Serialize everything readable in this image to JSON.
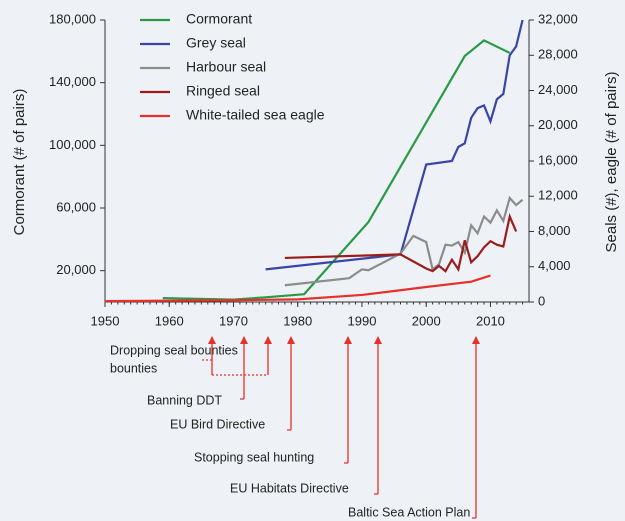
{
  "chart_data": {
    "type": "line",
    "y_label": "Cormorant (# of pairs)",
    "y2_label": "Seals (#), eagle (# of pairs)",
    "xlim": [
      1950,
      2016
    ],
    "xticks": [
      1950,
      1960,
      1970,
      1980,
      1990,
      2000,
      2010
    ],
    "ylim": [
      0,
      180000
    ],
    "yticks": [
      {
        "value": 20000,
        "label": "20,000"
      },
      {
        "value": 60000,
        "label": "60,000"
      },
      {
        "value": 100000,
        "label": "100,000"
      },
      {
        "value": 140000,
        "label": "140,000"
      },
      {
        "value": 180000,
        "label": "180,000"
      }
    ],
    "y2lim": [
      0,
      32000
    ],
    "y2ticks": [
      0,
      {
        "value": 4000,
        "label": "4,000"
      },
      {
        "value": 8000,
        "label": "8,000"
      },
      {
        "value": 12000,
        "label": "12,000"
      },
      {
        "value": 16000,
        "label": "16,000"
      },
      {
        "value": 20000,
        "label": "20,000"
      },
      {
        "value": 24000,
        "label": "24,000"
      },
      {
        "value": 28000,
        "label": "28,000"
      },
      {
        "value": 32000,
        "label": "32,000"
      }
    ],
    "legend": "upper left",
    "series": [
      {
        "name": "Cormorant",
        "color": "#2a9a48",
        "axis": "y",
        "x": [
          1959,
          1970,
          1975,
          1981,
          1991,
          2006,
          2009,
          2013
        ],
        "values": [
          2500,
          1500,
          3000,
          5000,
          51000,
          157000,
          167000,
          159000
        ]
      },
      {
        "name": "Grey seal",
        "color": "#3a45a8",
        "axis": "y2",
        "x": [
          1975,
          1996,
          2000,
          2004,
          2005,
          2006,
          2007,
          2008,
          2009,
          2010,
          2011,
          2012,
          2013,
          2014,
          2015
        ],
        "values": [
          3700,
          5400,
          15600,
          16000,
          17600,
          18000,
          20900,
          22000,
          22300,
          20500,
          23000,
          23600,
          28000,
          29000,
          32000
        ]
      },
      {
        "name": "Harbour seal",
        "color": "#8c8c8c",
        "axis": "y2",
        "x": [
          1978,
          1988,
          1990,
          1991,
          1996,
          1998,
          2000,
          2001,
          2002,
          2003,
          2004,
          2005,
          2006,
          2007,
          2008,
          2009,
          2010,
          2011,
          2012,
          2013,
          2014,
          2015
        ],
        "values": [
          1900,
          2700,
          3700,
          3600,
          5500,
          7500,
          6800,
          3700,
          4300,
          6500,
          6400,
          6800,
          5600,
          8700,
          7800,
          9700,
          9000,
          10400,
          9200,
          11800,
          11000,
          11600
        ]
      },
      {
        "name": "Ringed seal",
        "color": "#9a1c1c",
        "axis": "y2",
        "x": [
          1978,
          1996,
          2000,
          2001,
          2002,
          2003,
          2004,
          2005,
          2006,
          2007,
          2008,
          2009,
          2010,
          2011,
          2012,
          2013,
          2014
        ],
        "values": [
          5000,
          5400,
          3800,
          3500,
          4100,
          3500,
          4800,
          3700,
          7000,
          4500,
          5200,
          6200,
          6900,
          6500,
          6300,
          9700,
          8000
        ]
      },
      {
        "name": "White-tailed sea eagle",
        "color": "#e8302a",
        "axis": "y2",
        "x": [
          1950,
          1970,
          1980,
          1990,
          2000,
          2007,
          2010
        ],
        "values": [
          100,
          200,
          300,
          800,
          1700,
          2300,
          3000
        ]
      }
    ],
    "annotations": [
      "Dropping seal bounties",
      "Banning DDT",
      "EU Bird Directive",
      "Stopping seal hunting",
      "EU Habitats Directive",
      "Baltic Sea Action Plan"
    ]
  }
}
